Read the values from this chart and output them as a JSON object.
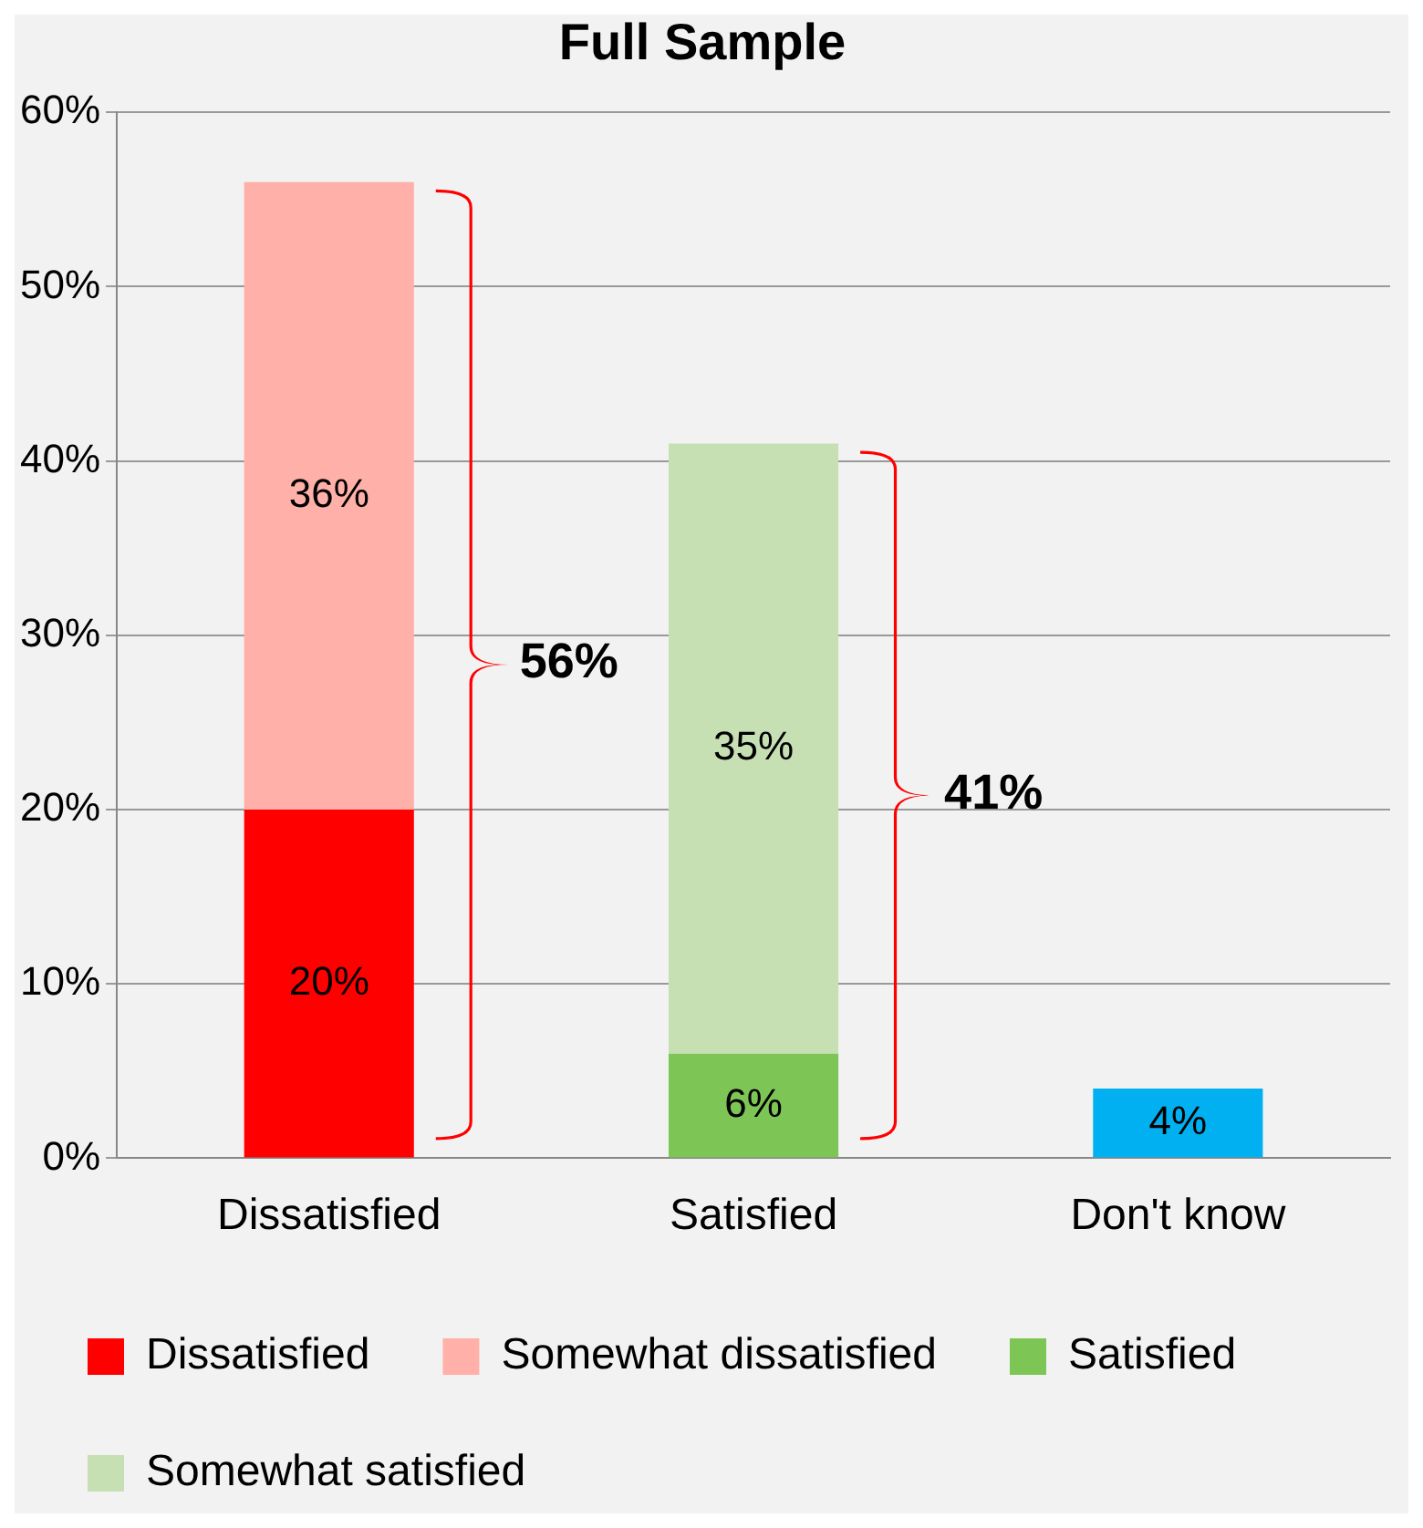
{
  "chart_data": {
    "type": "bar",
    "title": "Full Sample",
    "categories": [
      "Dissatisfied",
      "Satisfied",
      "Don't know"
    ],
    "stacked": true,
    "series": [
      {
        "name": "Dissatisfied",
        "color": "#ff0000",
        "values": [
          20,
          null,
          null
        ],
        "value_labels": [
          "20%",
          null,
          null
        ]
      },
      {
        "name": "Somewhat dissatisfied",
        "color": "#ffb0a8",
        "values": [
          36,
          null,
          null
        ],
        "value_labels": [
          "36%",
          null,
          null
        ]
      },
      {
        "name": "Satisfied",
        "color": "#7dc656",
        "values": [
          null,
          6,
          null
        ],
        "value_labels": [
          null,
          "6%",
          null
        ]
      },
      {
        "name": "Somewhat satisfied",
        "color": "#c6e0b4",
        "values": [
          null,
          35,
          null
        ],
        "value_labels": [
          null,
          "35%",
          null
        ]
      },
      {
        "color": "#00b0f0",
        "values": [
          null,
          null,
          4
        ],
        "value_labels": [
          null,
          null,
          "4%"
        ]
      }
    ],
    "ylim": [
      0,
      60
    ],
    "yticks": [
      {
        "value": 0,
        "label": "0%"
      },
      {
        "value": 10,
        "label": "10%"
      },
      {
        "value": 20,
        "label": "20%"
      },
      {
        "value": 30,
        "label": "30%"
      },
      {
        "value": 40,
        "label": "40%"
      },
      {
        "value": 50,
        "label": "50%"
      },
      {
        "value": 60,
        "label": "60%"
      }
    ],
    "grid": "y",
    "legend": "bottom",
    "annotations": [
      "56%",
      "41%"
    ]
  }
}
